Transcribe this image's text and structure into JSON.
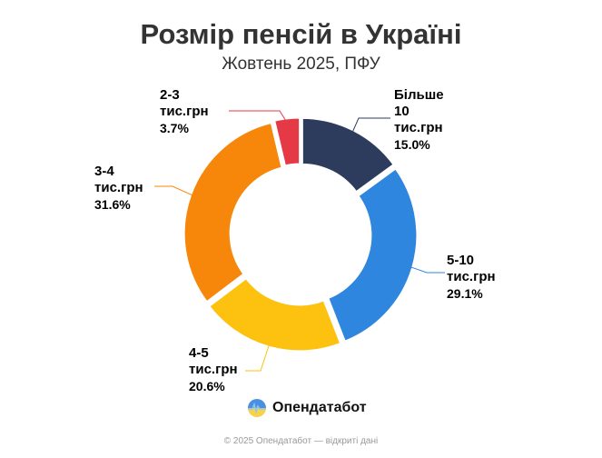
{
  "chart_data": {
    "type": "pie",
    "donut": true,
    "title": "Розмір пенсій в Україні",
    "subtitle": "Жовтень 2025, ПФУ",
    "categories": [
      "Більше 10 тис.грн",
      "5-10 тис.грн",
      "4-5 тис.грн",
      "3-4 тис.грн",
      "2-3 тис.грн"
    ],
    "labels": [
      {
        "line1": "Більше",
        "line2": "10",
        "line3": "тис.грн",
        "pct": "15.0%"
      },
      {
        "line1": "5-10",
        "line2": "тис.грн",
        "pct": "29.1%"
      },
      {
        "line1": "4-5",
        "line2": "тис.грн",
        "pct": "20.6%"
      },
      {
        "line1": "3-4",
        "line2": "тис.грн",
        "pct": "31.6%"
      },
      {
        "line1": "2-3",
        "line2": "тис.грн",
        "pct": "3.7%"
      }
    ],
    "values": [
      15.0,
      29.1,
      20.6,
      31.6,
      3.7
    ],
    "colors": [
      "#2d3b5c",
      "#2e86de",
      "#fdc10f",
      "#f7870b",
      "#e63946"
    ]
  },
  "brand": {
    "name": "Опендатабот",
    "icon": "opendatabot-logo"
  },
  "footer": "© 2025 Опендатабот — відкриті дані"
}
